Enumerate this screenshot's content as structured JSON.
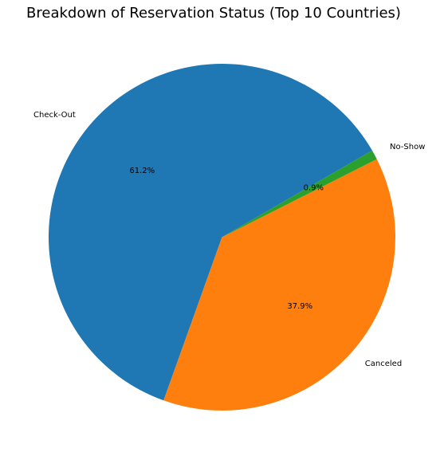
{
  "chart_data": {
    "type": "pie",
    "title": "Breakdown of Reservation Status (Top 10 Countries)",
    "start_angle_deg": 30,
    "direction": "counterclockwise",
    "slices": [
      {
        "label": "Check-Out",
        "pct_label": "61.2%",
        "value": 61.2,
        "color": "#1f77b4"
      },
      {
        "label": "Canceled",
        "pct_label": "37.9%",
        "value": 37.9,
        "color": "#ff7f0e"
      },
      {
        "label": "No-Show",
        "pct_label": "0.9%",
        "value": 0.9,
        "color": "#2ca02c"
      }
    ]
  }
}
